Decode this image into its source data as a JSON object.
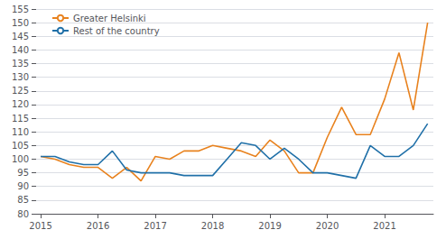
{
  "chart_data": {
    "type": "line",
    "x": [
      2015.0,
      2015.25,
      2015.5,
      2015.75,
      2016.0,
      2016.25,
      2016.5,
      2016.75,
      2017.0,
      2017.25,
      2017.5,
      2017.75,
      2018.0,
      2018.25,
      2018.5,
      2018.75,
      2019.0,
      2019.25,
      2019.5,
      2019.75,
      2020.0,
      2020.25,
      2020.5,
      2020.75,
      2021.0,
      2021.25,
      2021.5,
      2021.75
    ],
    "series": [
      {
        "name": "Greater Helsinki",
        "color": "#E8821E",
        "values": [
          101,
          100,
          98,
          97,
          97,
          93,
          97,
          92,
          101,
          100,
          103,
          103,
          105,
          104,
          103,
          101,
          107,
          103,
          95,
          95,
          108,
          119,
          109,
          109,
          122,
          139,
          118,
          150
        ]
      },
      {
        "name": "Rest of the country",
        "color": "#2070A8",
        "values": [
          101,
          101,
          99,
          98,
          98,
          103,
          96,
          95,
          95,
          95,
          94,
          94,
          94,
          100,
          106,
          105,
          100,
          104,
          100,
          95,
          95,
          94,
          93,
          105,
          101,
          101,
          105,
          113
        ]
      }
    ],
    "xlim": [
      2014.92,
      2021.85
    ],
    "xticks": [
      2015,
      2016,
      2017,
      2018,
      2019,
      2020,
      2021
    ],
    "ylim": [
      80,
      155
    ],
    "yticks": [
      80,
      85,
      90,
      95,
      100,
      105,
      110,
      115,
      120,
      125,
      130,
      135,
      140,
      145,
      150,
      155
    ],
    "grid": true,
    "legend": "upper left"
  }
}
